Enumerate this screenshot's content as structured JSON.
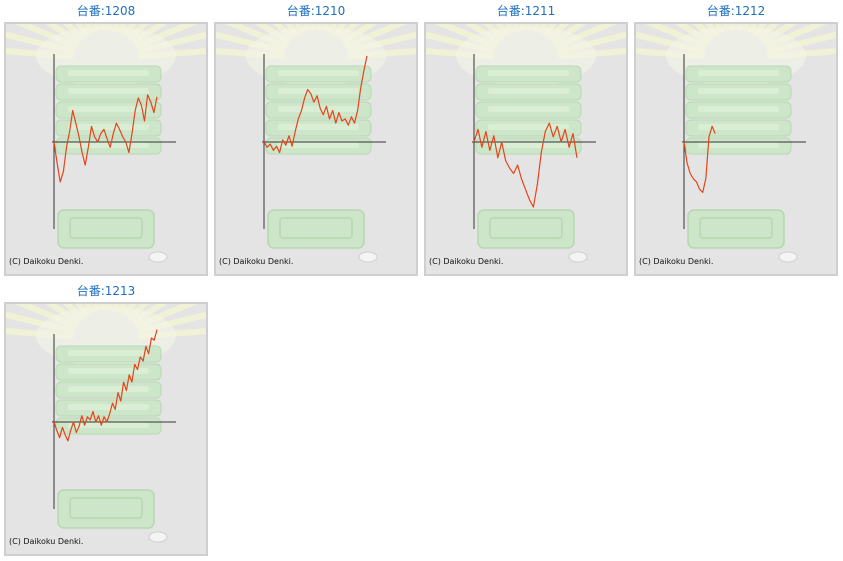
{
  "page": {
    "machines": [
      {
        "title": "台番:1208",
        "copyright": "(C) Daikoku Denki.",
        "chart_data": {
          "type": "line",
          "y": [
            0,
            -20,
            -38,
            -28,
            -5,
            10,
            30,
            18,
            5,
            -10,
            -22,
            -5,
            15,
            5,
            0,
            8,
            12,
            3,
            -5,
            8,
            18,
            12,
            5,
            0,
            -10,
            8,
            30,
            42,
            35,
            20,
            45,
            38,
            28,
            43
          ],
          "ylim": [
            -90,
            90
          ],
          "color": "#e4451a"
        }
      },
      {
        "title": "台番:1210",
        "copyright": "(C) Daikoku Denki.",
        "chart_data": {
          "type": "line",
          "y": [
            0,
            -5,
            -2,
            -8,
            -4,
            -10,
            2,
            -3,
            6,
            -4,
            10,
            22,
            30,
            42,
            50,
            46,
            38,
            44,
            32,
            26,
            34,
            22,
            30,
            18,
            28,
            20,
            22,
            16,
            24,
            18,
            30,
            52,
            68,
            82
          ],
          "ylim": [
            -90,
            90
          ],
          "color": "#e4451a"
        }
      },
      {
        "title": "台番:1211",
        "copyright": "(C) Daikoku Denki.",
        "chart_data": {
          "type": "line",
          "y": [
            0,
            12,
            -5,
            10,
            -8,
            6,
            -15,
            0,
            -18,
            -25,
            -30,
            -22,
            -35,
            -45,
            -55,
            -62,
            -40,
            -10,
            10,
            18,
            5,
            15,
            0,
            12,
            -5,
            8,
            -15
          ],
          "ylim": [
            -90,
            90
          ],
          "color": "#e4451a"
        }
      },
      {
        "title": "台番:1212",
        "copyright": "(C) Daikoku Denki.",
        "chart_data": {
          "type": "line",
          "y": [
            0,
            -20,
            -30,
            -35,
            -38,
            -45,
            -48,
            -35,
            5,
            15,
            8
          ],
          "ylim": [
            -90,
            90
          ],
          "color": "#e4451a"
        }
      },
      {
        "title": "台番:1213",
        "copyright": "(C) Daikoku Denki.",
        "chart_data": {
          "type": "line",
          "y": [
            0,
            -8,
            -15,
            -5,
            -12,
            -18,
            -8,
            0,
            -10,
            -4,
            6,
            -3,
            5,
            2,
            10,
            0,
            6,
            -3,
            5,
            0,
            8,
            18,
            12,
            28,
            20,
            38,
            30,
            45,
            38,
            55,
            50,
            62,
            58,
            72,
            65,
            80,
            78,
            88
          ],
          "ylim": [
            -90,
            90
          ],
          "color": "#e4451a"
        }
      }
    ],
    "colors": {
      "background": "#e4e4e4",
      "title_link": "#1f6fbf",
      "axis": "#333333",
      "line": "#e4451a"
    }
  }
}
